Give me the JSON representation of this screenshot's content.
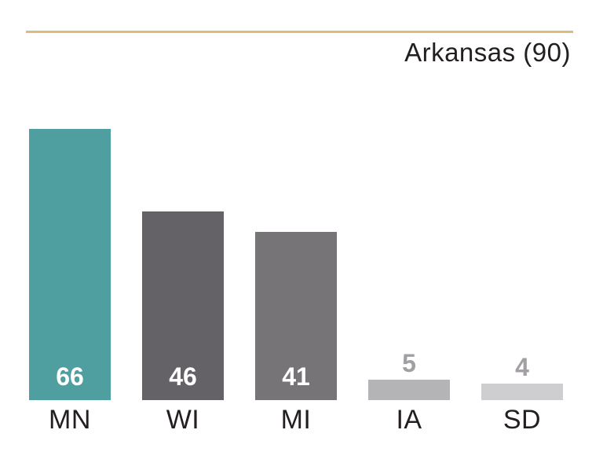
{
  "accent": {
    "rule_color": "#DBBC78",
    "text_color": "#231F20"
  },
  "chart_data": {
    "type": "bar",
    "title": "Arkansas (90)",
    "categories": [
      "MN",
      "WI",
      "MI",
      "IA",
      "SD"
    ],
    "values": [
      66,
      46,
      41,
      5,
      4
    ],
    "ylim": [
      0,
      66
    ],
    "grid": false,
    "legend": false,
    "highlight_category": "MN",
    "bar_colors": [
      "#4F9FA1",
      "#646266",
      "#767477",
      "#B4B3B6",
      "#CECDD0"
    ],
    "value_label_positions": [
      "inside",
      "inside",
      "inside",
      "above",
      "above"
    ],
    "value_label_colors": [
      "#FFFFFF",
      "#FFFFFF",
      "#FFFFFF",
      "#A19FA2",
      "#A19FA2"
    ],
    "x_label_color": "#231F20"
  }
}
